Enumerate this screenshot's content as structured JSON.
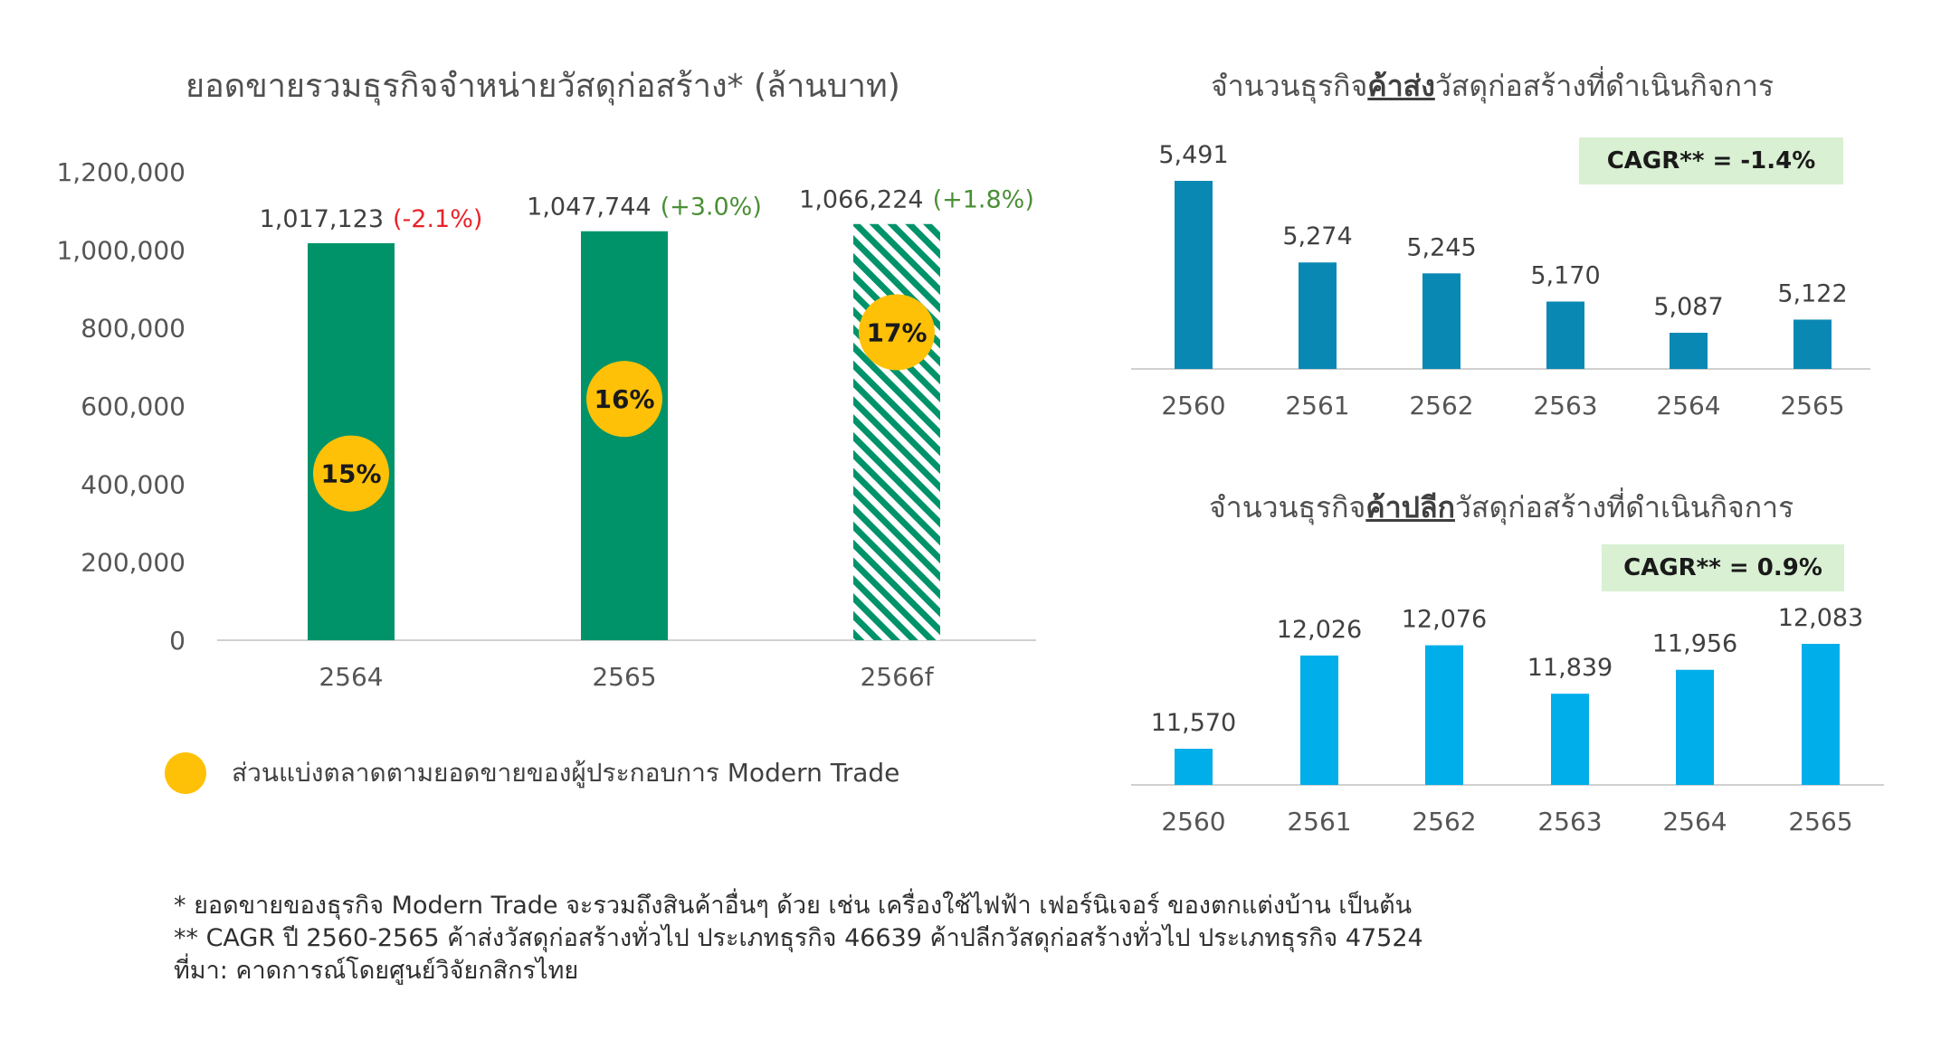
{
  "left_chart": {
    "title": "ยอดขายรวมธุรกิจจำหน่ายวัสดุก่อสร้าง* (ล้านบาท)"
  },
  "wholesale": {
    "title_prefix": "จำนวนธุรกิจ",
    "title_emphasis": "ค้าส่ง",
    "title_suffix": "วัสดุก่อสร้างที่ดำเนินกิจการ",
    "cagr": "CAGR** = -1.4%"
  },
  "retail": {
    "title_prefix": "จำนวนธุรกิจ",
    "title_emphasis": "ค้าปลีก",
    "title_suffix": "วัสดุก่อสร้างที่ดำเนินกิจการ",
    "cagr": "CAGR** = 0.9%"
  },
  "legend": {
    "label": "ส่วนแบ่งตลาดตามยอดขายของผู้ประกอบการ Modern Trade"
  },
  "notes": {
    "line1": "* ยอดขายของธุรกิจ Modern Trade จะรวมถึงสินค้าอื่นๆ ด้วย เช่น เครื่องใช้ไฟฟ้า เฟอร์นิเจอร์ ของตกแต่งบ้าน เป็นต้น",
    "line2": "** CAGR ปี 2560-2565 ค้าส่งวัสดุก่อสร้างทั่วไป ประเภทธุรกิจ 46639 ค้าปลีกวัสดุก่อสร้างทั่วไป ประเภทธุรกิจ 47524",
    "line3": "ที่มา: คาดการณ์โดยศูนย์วิจัยกสิกรไทย"
  },
  "colors": {
    "sales_bar": "#00936a",
    "share_circle": "#ffc107",
    "wholesale_bar": "#0a88b4",
    "retail_bar": "#00aeea",
    "negative": "#e8232a",
    "positive": "#4a8f36"
  },
  "chart_data": [
    {
      "type": "bar",
      "title": "ยอดขายรวมธุรกิจจำหน่ายวัสดุก่อสร้าง* (ล้านบาท)",
      "categories": [
        "2564",
        "2565",
        "2566f"
      ],
      "values": [
        1017123,
        1047744,
        1066224
      ],
      "value_labels": [
        "1,017,123",
        "1,047,744",
        "1,066,224"
      ],
      "change_labels": [
        "(-2.1%)",
        "(+3.0%)",
        "(+1.8%)"
      ],
      "change_signs": [
        "negative",
        "positive",
        "positive"
      ],
      "market_share": [
        "15%",
        "16%",
        "17%"
      ],
      "market_share_values": [
        15,
        16,
        17
      ],
      "forecast": [
        false,
        false,
        true
      ],
      "ylim": [
        0,
        1200000
      ],
      "yticks": [
        0,
        200000,
        400000,
        600000,
        800000,
        1000000,
        1200000
      ],
      "ytick_labels": [
        "0",
        "200,000",
        "400,000",
        "600,000",
        "800,000",
        "1,000,000",
        "1,200,000"
      ],
      "grid": false
    },
    {
      "type": "bar",
      "title": "จำนวนธุรกิจค้าส่งวัสดุก่อสร้างที่ดำเนินกิจการ",
      "categories": [
        "2560",
        "2561",
        "2562",
        "2563",
        "2564",
        "2565"
      ],
      "values": [
        5491,
        5274,
        5245,
        5170,
        5087,
        5122
      ],
      "value_labels": [
        "5,491",
        "5,274",
        "5,245",
        "5,170",
        "5,087",
        "5,122"
      ],
      "annotation": "CAGR** = -1.4%"
    },
    {
      "type": "bar",
      "title": "จำนวนธุรกิจค้าปลีกวัสดุก่อสร้างที่ดำเนินกิจการ",
      "categories": [
        "2560",
        "2561",
        "2562",
        "2563",
        "2564",
        "2565"
      ],
      "values": [
        11570,
        12026,
        12076,
        11839,
        11956,
        12083
      ],
      "value_labels": [
        "11,570",
        "12,026",
        "12,076",
        "11,839",
        "11,956",
        "12,083"
      ],
      "annotation": "CAGR** = 0.9%"
    }
  ]
}
